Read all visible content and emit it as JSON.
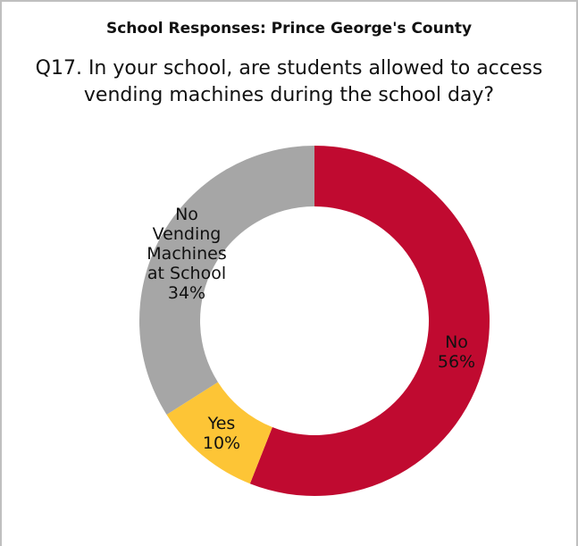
{
  "header": {
    "title": "School Responses: Prince George's County",
    "question": "Q17. In your school, are students allowed to access vending machines during the school day?"
  },
  "chart_data": {
    "type": "pie",
    "donut": true,
    "title": "School Responses: Prince George's County",
    "subtitle": "Q17. In your school, are students allowed to access vending machines during the school day?",
    "slices": [
      {
        "label": "No",
        "value": 56,
        "value_label": "56%",
        "color": "#c00a30"
      },
      {
        "label": "Yes",
        "value": 10,
        "value_label": "10%",
        "color": "#fdc536"
      },
      {
        "label": "No Vending Machines at School",
        "value": 34,
        "value_label": "34%",
        "color": "#a6a6a6"
      }
    ]
  }
}
